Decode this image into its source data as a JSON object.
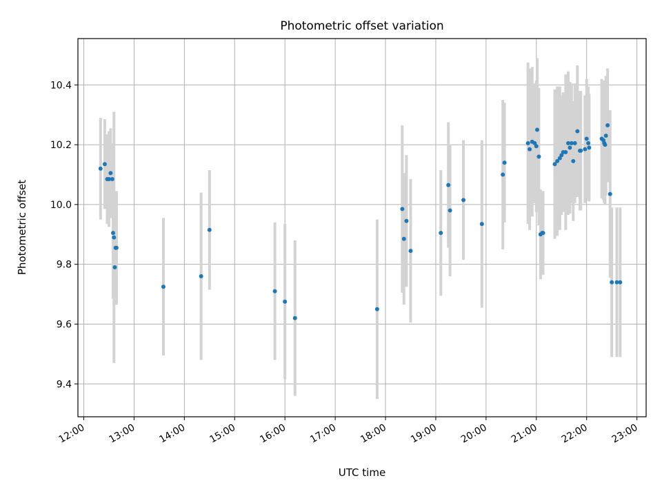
{
  "chart_data": {
    "type": "scatter",
    "title": "Photometric offset variation",
    "xlabel": "UTC time",
    "ylabel": "Photometric offset",
    "x_ticks": [
      "12:00",
      "13:00",
      "14:00",
      "15:00",
      "16:00",
      "17:00",
      "18:00",
      "19:00",
      "20:00",
      "21:00",
      "22:00",
      "23:00"
    ],
    "y_ticks": [
      "9.4",
      "9.6",
      "9.8",
      "10.0",
      "10.2",
      "10.4"
    ],
    "xlim": [
      "11:53",
      "23:11"
    ],
    "ylim": [
      9.29,
      10.555
    ],
    "grid": true,
    "colors": {
      "marker": "#1f77b4",
      "errorbar": "#d3d3d3",
      "grid": "#b0b0b0"
    },
    "series": [
      {
        "x": [
          "12:20",
          "12:25",
          "12:28",
          "12:30",
          "12:32",
          "12:34",
          "12:35",
          "12:36",
          "12:37",
          "12:38",
          "12:39",
          "13:35",
          "14:20",
          "14:30",
          "15:48",
          "16:00",
          "16:12",
          "17:50",
          "18:20",
          "18:22",
          "18:25",
          "18:30",
          "19:06",
          "19:15",
          "19:17",
          "19:33",
          "19:55",
          "20:20",
          "20:22",
          "20:50",
          "20:52",
          "20:55",
          "20:58",
          "21:00",
          "21:01",
          "21:03",
          "21:05",
          "21:07",
          "21:08",
          "21:22",
          "21:25",
          "21:28",
          "21:30",
          "21:32",
          "21:35",
          "21:38",
          "21:40",
          "21:42",
          "21:44",
          "21:46",
          "21:49",
          "21:52",
          "21:53",
          "21:58",
          "22:00",
          "22:02",
          "22:03",
          "22:18",
          "22:20",
          "22:21",
          "22:22",
          "22:23",
          "22:25",
          "22:28",
          "22:30",
          "22:36",
          "22:40"
        ],
        "y": [
          10.12,
          10.135,
          10.085,
          10.085,
          10.105,
          10.085,
          9.905,
          9.89,
          9.79,
          9.855,
          9.855,
          9.725,
          9.76,
          9.915,
          9.71,
          9.675,
          9.62,
          9.65,
          9.985,
          9.885,
          9.945,
          9.845,
          9.905,
          10.065,
          9.98,
          10.015,
          9.935,
          10.1,
          10.14,
          10.205,
          10.185,
          10.21,
          10.205,
          10.195,
          10.25,
          10.16,
          9.9,
          9.905,
          9.905,
          10.135,
          10.145,
          10.155,
          10.165,
          10.175,
          10.175,
          10.205,
          10.19,
          10.205,
          10.145,
          10.205,
          10.245,
          10.18,
          10.18,
          10.185,
          10.22,
          10.205,
          10.19,
          10.22,
          10.215,
          10.205,
          10.2,
          10.23,
          10.265,
          10.035,
          9.74,
          9.74,
          9.74
        ],
        "yerr": [
          0.17,
          0.15,
          0.15,
          0.16,
          0.15,
          0.12,
          0.22,
          0.42,
          0.11,
          0.19,
          0.19,
          0.23,
          0.28,
          0.2,
          0.23,
          0.26,
          0.26,
          0.3,
          0.28,
          0.22,
          0.22,
          0.24,
          0.21,
          0.21,
          0.22,
          0.2,
          0.28,
          0.25,
          0.2,
          0.27,
          0.27,
          0.25,
          0.2,
          0.22,
          0.24,
          0.23,
          0.15,
          0.14,
          0.14,
          0.25,
          0.25,
          0.24,
          0.2,
          0.2,
          0.26,
          0.24,
          0.22,
          0.2,
          0.2,
          0.2,
          0.22,
          0.2,
          0.2,
          0.18,
          0.2,
          0.19,
          0.18,
          0.2,
          0.2,
          0.2,
          0.2,
          0.2,
          0.19,
          0.28,
          0.25,
          0.25,
          0.25
        ]
      }
    ]
  }
}
